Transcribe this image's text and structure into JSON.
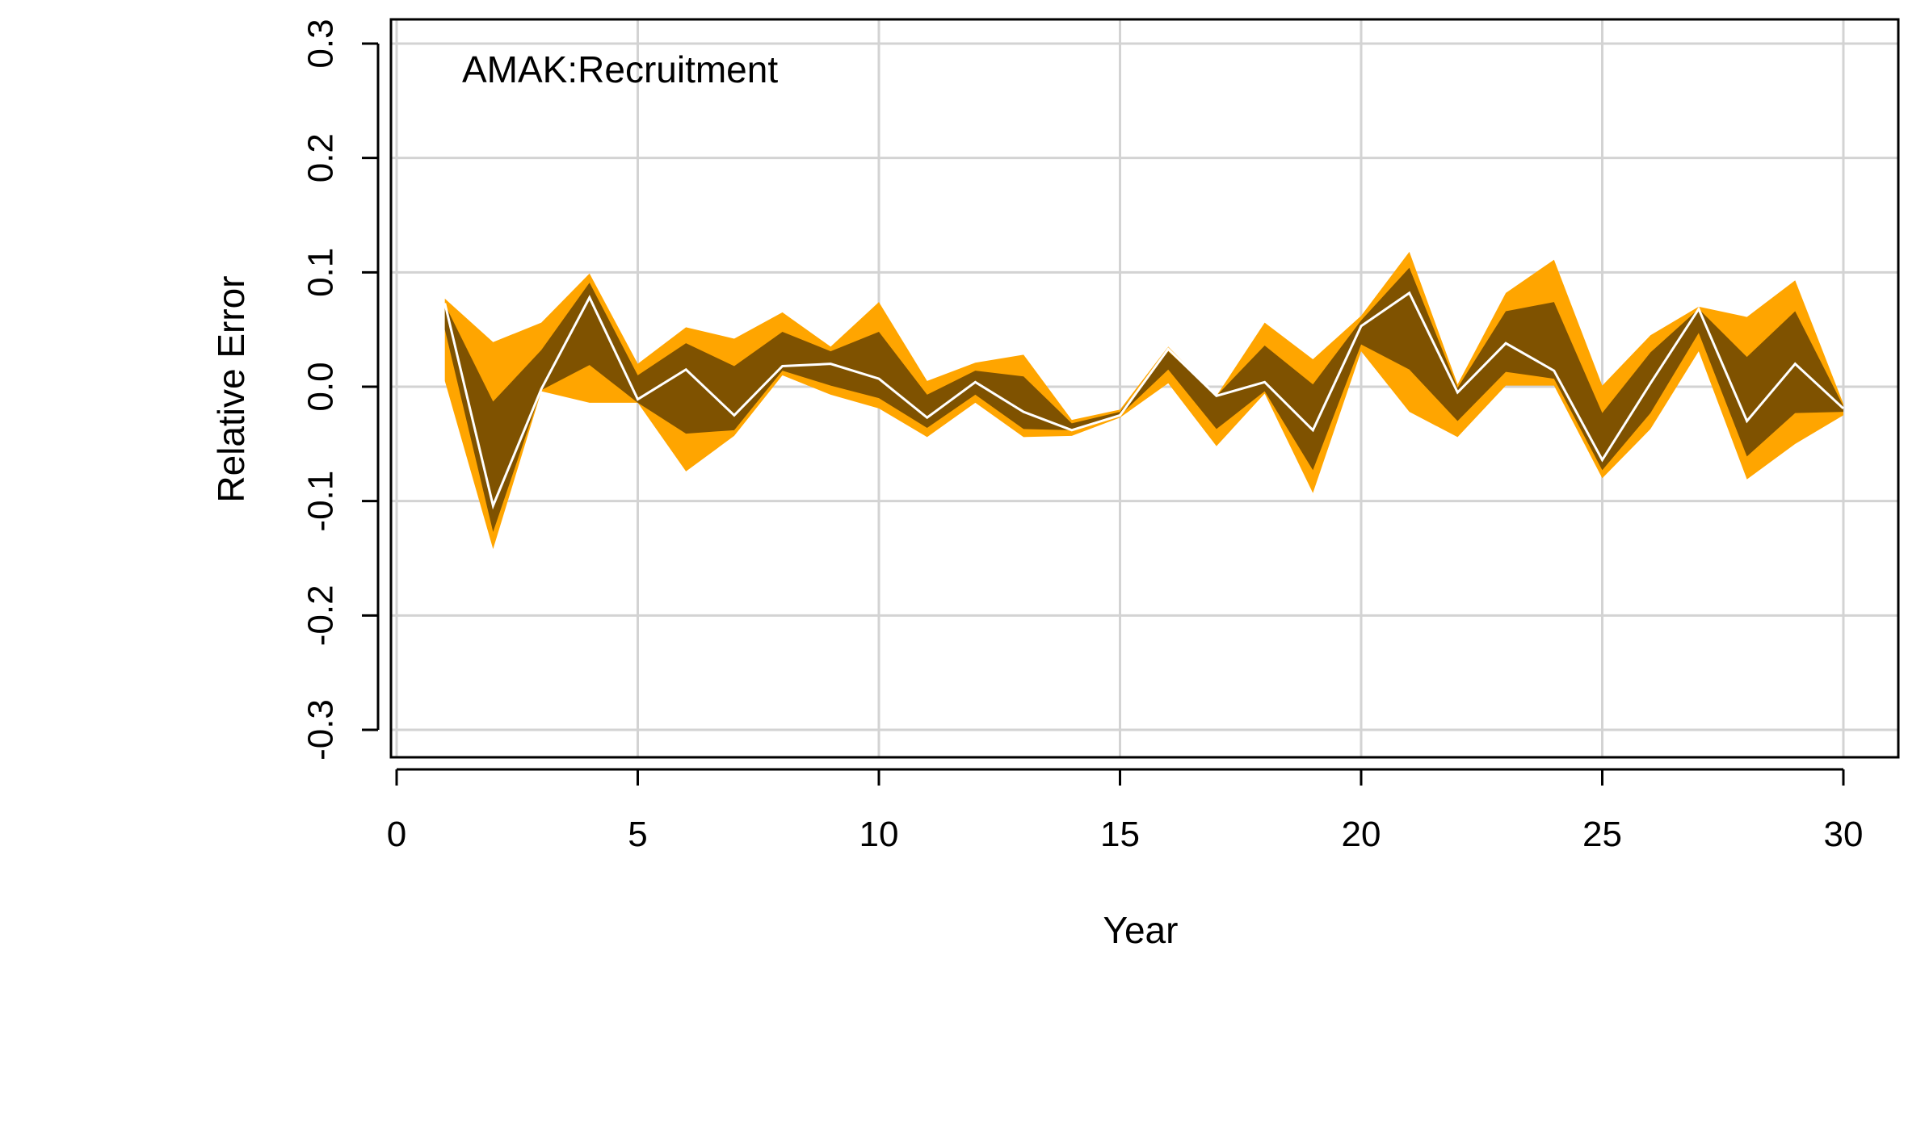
{
  "chart_data": {
    "type": "area",
    "title": "",
    "panel_label": "AMAK:Recruitment",
    "xlabel": "Year",
    "ylabel": "Relative Error",
    "xlim": [
      0,
      30
    ],
    "ylim": [
      -0.3,
      0.3
    ],
    "x_ticks": [
      0,
      5,
      10,
      15,
      20,
      25,
      30
    ],
    "x_tick_labels": [
      "0",
      "5",
      "10",
      "15",
      "20",
      "25",
      "30"
    ],
    "y_ticks": [
      -0.3,
      -0.2,
      -0.1,
      0.0,
      0.1,
      0.2,
      0.3
    ],
    "y_tick_labels": [
      "-0.3",
      "-0.2",
      "-0.1",
      "0.0",
      "0.1",
      "0.2",
      "0.3"
    ],
    "grid": true,
    "legend": "none",
    "colors": {
      "outer_band": "#ffa500",
      "inner_band": "#7f5200",
      "median_line": "#ffffff",
      "grid": "#d3d3d3",
      "axis": "#000000"
    },
    "x": [
      1,
      2,
      3,
      4,
      5,
      6,
      7,
      8,
      9,
      10,
      11,
      12,
      13,
      14,
      15,
      16,
      17,
      18,
      19,
      20,
      21,
      22,
      23,
      24,
      25,
      26,
      27,
      28,
      29,
      30
    ],
    "series": [
      {
        "name": "",
        "role": "outer_upper",
        "values": [
          0.077,
          0.039,
          0.056,
          0.099,
          0.02,
          0.052,
          0.042,
          0.065,
          0.035,
          0.074,
          0.005,
          0.021,
          0.028,
          -0.029,
          -0.02,
          0.035,
          -0.008,
          0.056,
          0.024,
          0.062,
          0.118,
          0.002,
          0.082,
          0.111,
          0.001,
          0.045,
          0.07,
          0.061,
          0.093,
          -0.015
        ]
      },
      {
        "name": "",
        "role": "inner_upper",
        "values": [
          0.072,
          -0.013,
          0.032,
          0.091,
          0.01,
          0.038,
          0.018,
          0.048,
          0.031,
          0.048,
          -0.007,
          0.014,
          0.009,
          -0.032,
          -0.022,
          0.031,
          -0.008,
          0.036,
          0.002,
          0.058,
          0.104,
          -0.001,
          0.066,
          0.074,
          -0.023,
          0.03,
          0.068,
          0.026,
          0.066,
          -0.017
        ]
      },
      {
        "name": "",
        "role": "median",
        "values": [
          0.073,
          -0.104,
          -0.002,
          0.078,
          -0.011,
          0.015,
          -0.025,
          0.018,
          0.02,
          0.007,
          -0.027,
          0.004,
          -0.022,
          -0.038,
          -0.025,
          0.033,
          -0.008,
          0.004,
          -0.038,
          0.053,
          0.082,
          -0.005,
          0.038,
          0.014,
          -0.064,
          0.003,
          0.068,
          -0.03,
          0.02,
          -0.019
        ]
      },
      {
        "name": "",
        "role": "inner_lower",
        "values": [
          0.05,
          -0.127,
          -0.003,
          0.019,
          -0.014,
          -0.041,
          -0.038,
          0.014,
          0.001,
          -0.01,
          -0.036,
          -0.007,
          -0.037,
          -0.038,
          -0.025,
          0.015,
          -0.037,
          -0.004,
          -0.073,
          0.037,
          0.015,
          -0.03,
          0.013,
          0.007,
          -0.073,
          -0.023,
          0.047,
          -0.061,
          -0.023,
          -0.022
        ]
      },
      {
        "name": "",
        "role": "outer_lower",
        "values": [
          0.005,
          -0.142,
          -0.004,
          -0.014,
          -0.014,
          -0.074,
          -0.043,
          0.01,
          -0.007,
          -0.019,
          -0.044,
          -0.014,
          -0.044,
          -0.043,
          -0.027,
          0.003,
          -0.052,
          -0.006,
          -0.093,
          0.031,
          -0.022,
          -0.044,
          0.001,
          0.001,
          -0.08,
          -0.037,
          0.031,
          -0.081,
          -0.05,
          -0.025
        ]
      }
    ]
  }
}
